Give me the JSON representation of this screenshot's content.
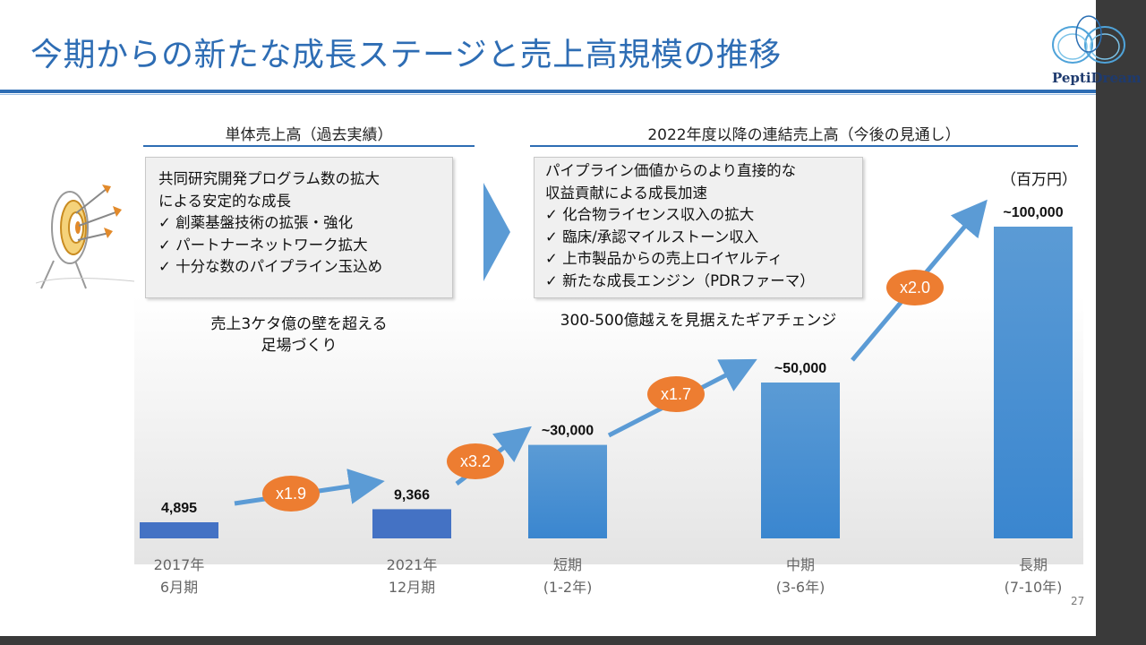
{
  "title": "今期からの新たな成長ステージと売上高規模の推移",
  "logo_text": "PeptiDream",
  "page_number": "27",
  "unit": "（百万円）",
  "left_section": {
    "heading": "単体売上高（過去実績）",
    "box_lines": [
      "共同研究開発プログラム数の拡大",
      "による安定的な成長",
      "✓  創薬基盤技術の拡張・強化",
      "✓  パートナーネットワーク拡大",
      "✓  十分な数のパイプライン玉込め"
    ],
    "note": [
      "売上3ケタ億の壁を超える",
      "足場づくり"
    ]
  },
  "right_section": {
    "heading": "2022年度以降の連結売上高（今後の見通し）",
    "box_lines": [
      "パイプライン価値からのより直接的な",
      "収益貢献による成長加速",
      "✓  化合物ライセンス収入の拡大",
      "✓  臨床/承認マイルストーン収入",
      "✓  上市製品からの売上ロイヤルティ",
      "✓  新たな成長エンジン（PDRファーマ）"
    ],
    "note": "300-500億越えを見据えたギアチェンジ"
  },
  "colors": {
    "title_blue": "#2e6db4",
    "bar_dark": "#4472c4",
    "bar_light": "#5b9bd5",
    "arrow": "#5b9bd5",
    "badge": "#ed7d31"
  },
  "chart_data": {
    "type": "bar",
    "categories": [
      [
        "2017年",
        "6月期"
      ],
      [
        "2021年",
        "12月期"
      ],
      [
        "短期",
        "(1-2年)"
      ],
      [
        "中期",
        "(3-6年)"
      ],
      [
        "長期",
        "(7-10年)"
      ]
    ],
    "values": [
      4895,
      9366,
      30000,
      50000,
      100000
    ],
    "value_labels": [
      "4,895",
      "9,366",
      "~30,000",
      "~50,000",
      "~100,000"
    ],
    "bar_styles": [
      "actual",
      "actual",
      "forecast",
      "forecast",
      "forecast"
    ],
    "ylim": [
      0,
      100000
    ],
    "multipliers": [
      "x1.9",
      "x3.2",
      "x1.7",
      "x2.0"
    ],
    "unit": "百万円"
  }
}
